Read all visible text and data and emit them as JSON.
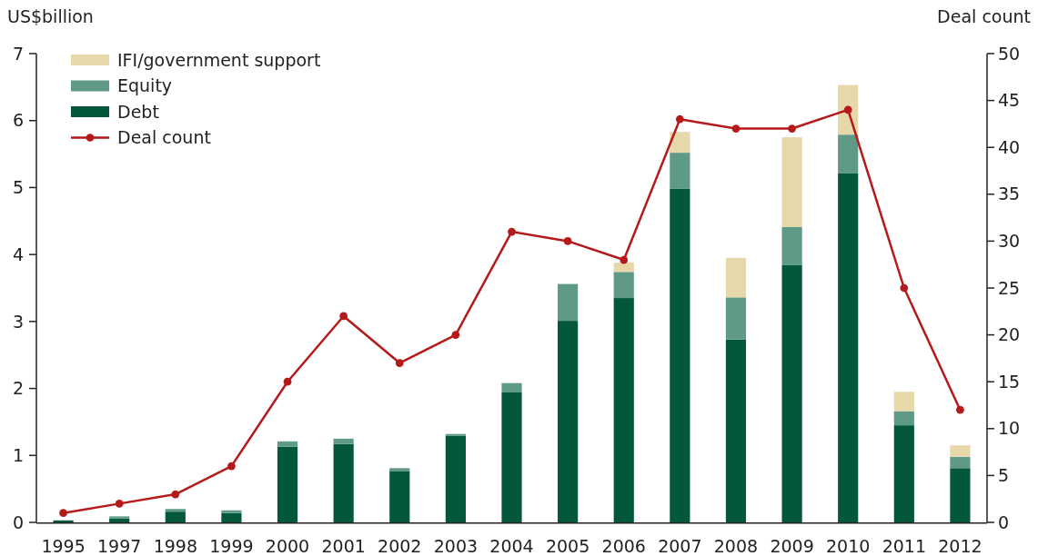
{
  "chart_data": {
    "type": "bar",
    "stacked": true,
    "ylabel": "US$billion",
    "y2label": "Deal count",
    "categories": [
      "1995",
      "1997",
      "1998",
      "1999",
      "2000",
      "2001",
      "2002",
      "2003",
      "2004",
      "2005",
      "2006",
      "2007",
      "2008",
      "2009",
      "2010",
      "2011",
      "2012"
    ],
    "series": [
      {
        "name": "Debt",
        "color": "#03573b",
        "values": [
          0.03,
          0.06,
          0.16,
          0.14,
          1.13,
          1.17,
          0.76,
          1.29,
          1.94,
          3.01,
          3.35,
          4.98,
          2.73,
          3.84,
          5.21,
          1.45,
          0.81
        ]
      },
      {
        "name": "Equity",
        "color": "#5f9a87",
        "values": [
          0,
          0.03,
          0.04,
          0.04,
          0.08,
          0.08,
          0.05,
          0.03,
          0.14,
          0.55,
          0.39,
          0.54,
          0.63,
          0.57,
          0.58,
          0.21,
          0.17
        ]
      },
      {
        "name": "IFI/government support",
        "color": "#e6d8a8",
        "values": [
          0,
          0,
          0,
          0,
          0,
          0,
          0,
          0,
          0,
          0,
          0.14,
          0.31,
          0.59,
          1.34,
          0.74,
          0.29,
          0.17
        ]
      },
      {
        "name": "Deal count",
        "type": "line",
        "axis": "y2",
        "color": "#b5191a",
        "values": [
          1,
          2,
          3,
          6,
          15,
          22,
          17,
          20,
          31,
          30,
          28,
          43,
          42,
          42,
          44,
          25,
          12
        ]
      }
    ],
    "ylim": [
      0,
      7
    ],
    "yticks": [
      0,
      1,
      2,
      3,
      4,
      5,
      6,
      7
    ],
    "y2lim": [
      0,
      50
    ],
    "y2ticks": [
      0,
      5,
      10,
      15,
      20,
      25,
      30,
      35,
      40,
      45,
      50
    ],
    "marker": "circle",
    "grid": false,
    "legend": "top left"
  }
}
